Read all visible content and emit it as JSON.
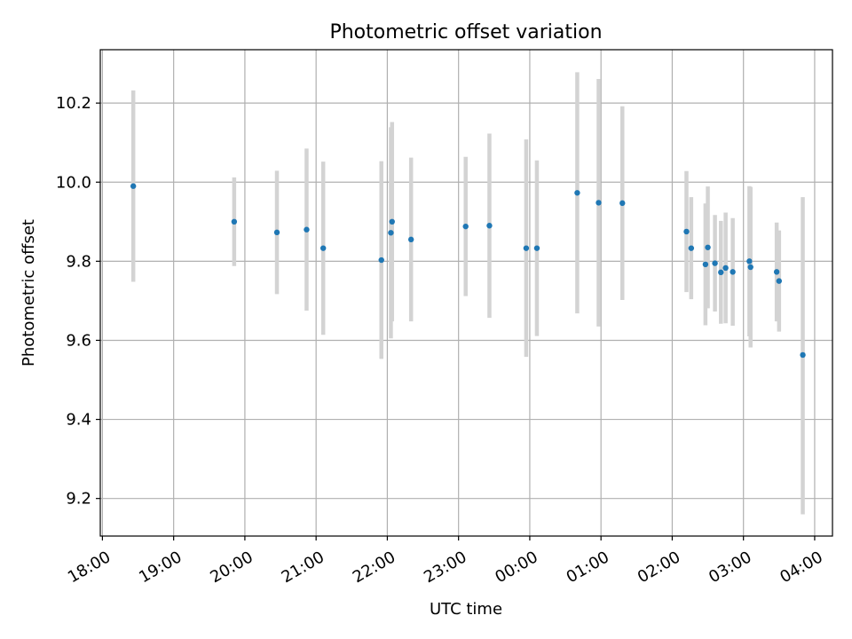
{
  "chart_data": {
    "type": "scatter",
    "title": "Photometric offset variation",
    "xlabel": "UTC time",
    "ylabel": "Photometric offset",
    "xlim_hours": [
      -0.03,
      10.25
    ],
    "ylim": [
      9.105,
      10.335
    ],
    "grid": true,
    "legend": "none",
    "x_ticks": [
      {
        "label": "18:00",
        "value": 0
      },
      {
        "label": "19:00",
        "value": 1
      },
      {
        "label": "20:00",
        "value": 2
      },
      {
        "label": "21:00",
        "value": 3
      },
      {
        "label": "22:00",
        "value": 4
      },
      {
        "label": "23:00",
        "value": 5
      },
      {
        "label": "00:00",
        "value": 6
      },
      {
        "label": "01:00",
        "value": 7
      },
      {
        "label": "02:00",
        "value": 8
      },
      {
        "label": "03:00",
        "value": 9
      },
      {
        "label": "04:00",
        "value": 10
      }
    ],
    "y_ticks": [
      9.2,
      9.4,
      9.6,
      9.8,
      10.0,
      10.2
    ],
    "y_tick_labels": [
      "9.2",
      "9.4",
      "9.6",
      "9.8",
      "10.0",
      "10.2"
    ],
    "colors": {
      "point": "#1f77b4",
      "errorbar": "#d3d3d3",
      "grid": "#b0b0b0"
    },
    "points": [
      {
        "t": "18:26",
        "y": 9.99,
        "ylow": 9.748,
        "yhigh": 10.232
      },
      {
        "t": "19:51",
        "y": 9.9,
        "ylow": 9.788,
        "yhigh": 10.012
      },
      {
        "t": "20:27",
        "y": 9.873,
        "ylow": 9.717,
        "yhigh": 10.029
      },
      {
        "t": "20:52",
        "y": 9.88,
        "ylow": 9.675,
        "yhigh": 10.085
      },
      {
        "t": "21:06",
        "y": 9.833,
        "ylow": 9.614,
        "yhigh": 10.052
      },
      {
        "t": "21:55",
        "y": 9.803,
        "ylow": 9.553,
        "yhigh": 10.053
      },
      {
        "t": "22:03",
        "y": 9.872,
        "ylow": 9.605,
        "yhigh": 10.139
      },
      {
        "t": "22:04",
        "y": 9.9,
        "ylow": 9.648,
        "yhigh": 10.152
      },
      {
        "t": "22:20",
        "y": 9.855,
        "ylow": 9.648,
        "yhigh": 10.062
      },
      {
        "t": "23:06",
        "y": 9.888,
        "ylow": 9.712,
        "yhigh": 10.064
      },
      {
        "t": "23:26",
        "y": 9.89,
        "ylow": 9.657,
        "yhigh": 10.123
      },
      {
        "t": "23:57",
        "y": 9.833,
        "ylow": 9.558,
        "yhigh": 10.108
      },
      {
        "t": "00:06",
        "y": 9.833,
        "ylow": 9.611,
        "yhigh": 10.055
      },
      {
        "t": "00:40",
        "y": 9.973,
        "ylow": 9.668,
        "yhigh": 10.278
      },
      {
        "t": "00:58",
        "y": 9.948,
        "ylow": 9.635,
        "yhigh": 10.261
      },
      {
        "t": "01:18",
        "y": 9.947,
        "ylow": 9.702,
        "yhigh": 10.192
      },
      {
        "t": "02:12",
        "y": 9.875,
        "ylow": 9.722,
        "yhigh": 10.028
      },
      {
        "t": "02:16",
        "y": 9.833,
        "ylow": 9.704,
        "yhigh": 9.962
      },
      {
        "t": "02:28",
        "y": 9.792,
        "ylow": 9.638,
        "yhigh": 9.946
      },
      {
        "t": "02:30",
        "y": 9.835,
        "ylow": 9.681,
        "yhigh": 9.989
      },
      {
        "t": "02:36",
        "y": 9.795,
        "ylow": 9.673,
        "yhigh": 9.917
      },
      {
        "t": "02:41",
        "y": 9.772,
        "ylow": 9.642,
        "yhigh": 9.902
      },
      {
        "t": "02:45",
        "y": 9.783,
        "ylow": 9.643,
        "yhigh": 9.923
      },
      {
        "t": "02:51",
        "y": 9.773,
        "ylow": 9.637,
        "yhigh": 9.909
      },
      {
        "t": "03:05",
        "y": 9.8,
        "ylow": 9.61,
        "yhigh": 9.99
      },
      {
        "t": "03:06",
        "y": 9.785,
        "ylow": 9.582,
        "yhigh": 9.988
      },
      {
        "t": "03:28",
        "y": 9.773,
        "ylow": 9.648,
        "yhigh": 9.898
      },
      {
        "t": "03:30",
        "y": 9.75,
        "ylow": 9.622,
        "yhigh": 9.878
      },
      {
        "t": "03:50",
        "y": 9.563,
        "ylow": 9.16,
        "yhigh": 9.962
      }
    ]
  }
}
